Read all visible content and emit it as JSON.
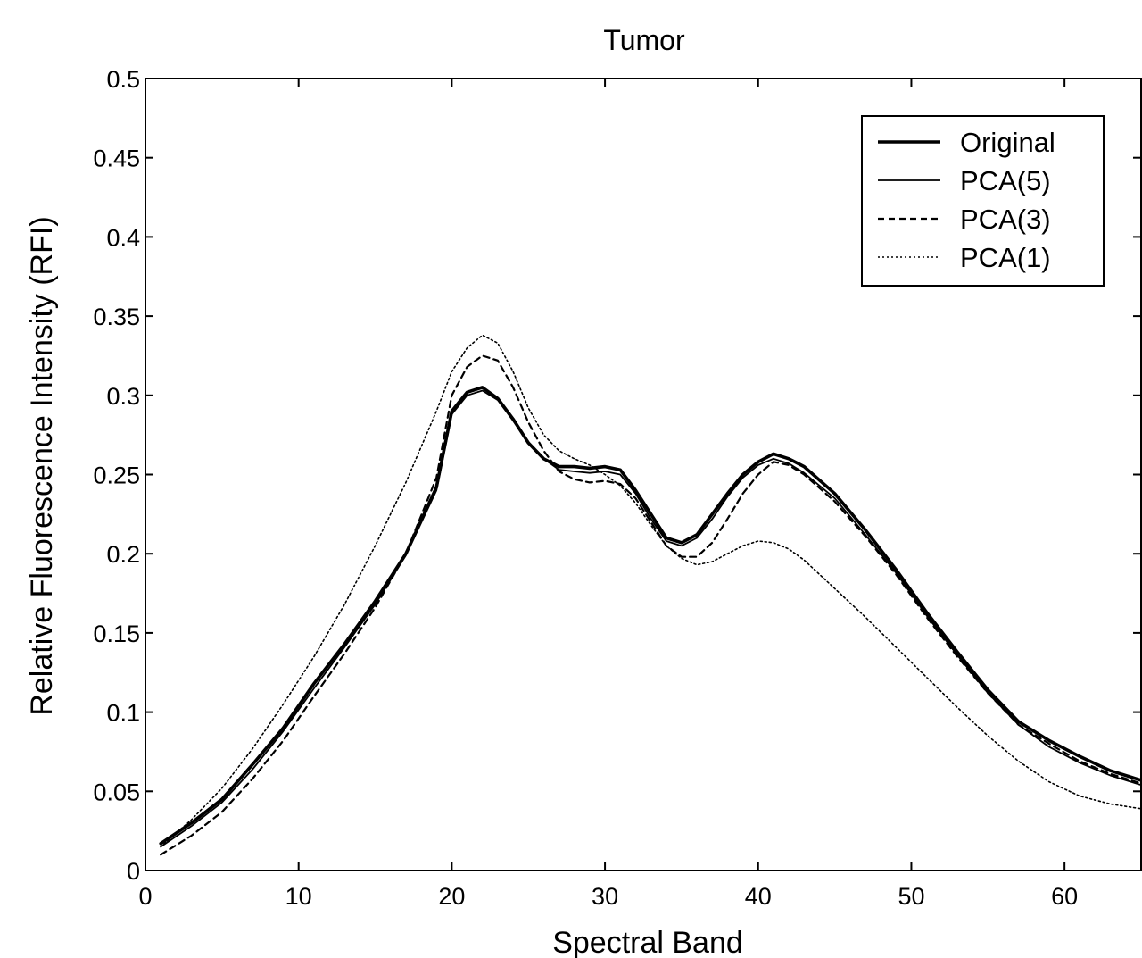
{
  "chart_data": {
    "type": "line",
    "title": "Tumor",
    "xlabel": "Spectral Band",
    "ylabel": "Relative Fluorescence Intensity (RFI)",
    "xlim": [
      0,
      65
    ],
    "ylim": [
      0,
      0.5
    ],
    "xticks": [
      0,
      10,
      20,
      30,
      40,
      50,
      60
    ],
    "xtick_labels": [
      "0",
      "10",
      "20",
      "30",
      "40",
      "50",
      "60"
    ],
    "yticks": [
      0,
      0.05,
      0.1,
      0.15,
      0.2,
      0.25,
      0.3,
      0.35,
      0.4,
      0.45,
      0.5
    ],
    "ytick_labels": [
      "0",
      "0.05",
      "0.1",
      "0.15",
      "0.2",
      "0.25",
      "0.3",
      "0.35",
      "0.4",
      "0.45",
      "0.5"
    ],
    "grid": false,
    "legend_position": "top-right",
    "series": [
      {
        "name": "Original",
        "style": "thick-solid",
        "x": [
          1,
          3,
          5,
          7,
          9,
          11,
          13,
          15,
          17,
          19,
          20,
          21,
          22,
          23,
          24,
          25,
          26,
          27,
          28,
          29,
          30,
          31,
          32,
          33,
          34,
          35,
          36,
          37,
          38,
          39,
          40,
          41,
          42,
          43,
          45,
          47,
          49,
          51,
          53,
          55,
          57,
          59,
          61,
          63,
          65
        ],
        "y": [
          0.017,
          0.03,
          0.045,
          0.067,
          0.09,
          0.118,
          0.143,
          0.17,
          0.2,
          0.242,
          0.29,
          0.302,
          0.305,
          0.298,
          0.285,
          0.27,
          0.26,
          0.255,
          0.255,
          0.254,
          0.255,
          0.253,
          0.24,
          0.225,
          0.21,
          0.207,
          0.212,
          0.225,
          0.238,
          0.25,
          0.258,
          0.263,
          0.26,
          0.255,
          0.238,
          0.215,
          0.19,
          0.163,
          0.138,
          0.114,
          0.094,
          0.082,
          0.072,
          0.063,
          0.057
        ]
      },
      {
        "name": "PCA(5)",
        "style": "solid",
        "x": [
          1,
          3,
          5,
          7,
          9,
          11,
          13,
          15,
          17,
          19,
          20,
          21,
          22,
          23,
          24,
          25,
          26,
          27,
          28,
          29,
          30,
          31,
          32,
          33,
          34,
          35,
          36,
          37,
          38,
          39,
          40,
          41,
          42,
          43,
          45,
          47,
          49,
          51,
          53,
          55,
          57,
          59,
          61,
          63,
          65
        ],
        "y": [
          0.015,
          0.028,
          0.043,
          0.064,
          0.088,
          0.115,
          0.141,
          0.168,
          0.199,
          0.24,
          0.288,
          0.3,
          0.303,
          0.297,
          0.284,
          0.27,
          0.26,
          0.253,
          0.252,
          0.251,
          0.252,
          0.25,
          0.238,
          0.222,
          0.208,
          0.205,
          0.21,
          0.222,
          0.236,
          0.248,
          0.256,
          0.26,
          0.257,
          0.251,
          0.235,
          0.212,
          0.188,
          0.161,
          0.136,
          0.112,
          0.092,
          0.078,
          0.068,
          0.06,
          0.054
        ]
      },
      {
        "name": "PCA(3)",
        "style": "dashed",
        "x": [
          1,
          3,
          5,
          7,
          9,
          11,
          13,
          15,
          17,
          19,
          20,
          21,
          22,
          23,
          24,
          25,
          26,
          27,
          28,
          29,
          30,
          31,
          32,
          33,
          34,
          35,
          36,
          37,
          38,
          39,
          40,
          41,
          42,
          43,
          45,
          47,
          49,
          51,
          53,
          55,
          57,
          59,
          61,
          63,
          65
        ],
        "y": [
          0.01,
          0.022,
          0.037,
          0.058,
          0.082,
          0.11,
          0.137,
          0.166,
          0.2,
          0.248,
          0.3,
          0.318,
          0.325,
          0.322,
          0.305,
          0.283,
          0.265,
          0.252,
          0.247,
          0.245,
          0.246,
          0.244,
          0.235,
          0.22,
          0.205,
          0.198,
          0.198,
          0.207,
          0.222,
          0.238,
          0.25,
          0.258,
          0.256,
          0.25,
          0.233,
          0.211,
          0.187,
          0.16,
          0.135,
          0.112,
          0.092,
          0.08,
          0.069,
          0.061,
          0.055
        ]
      },
      {
        "name": "PCA(1)",
        "style": "dotted",
        "x": [
          1,
          3,
          5,
          7,
          9,
          11,
          13,
          15,
          17,
          19,
          20,
          21,
          22,
          23,
          24,
          25,
          26,
          27,
          28,
          29,
          30,
          31,
          32,
          33,
          34,
          35,
          36,
          37,
          38,
          39,
          40,
          41,
          42,
          43,
          45,
          47,
          49,
          51,
          53,
          55,
          57,
          59,
          61,
          63,
          65
        ],
        "y": [
          0.015,
          0.032,
          0.052,
          0.077,
          0.105,
          0.135,
          0.168,
          0.205,
          0.245,
          0.29,
          0.315,
          0.33,
          0.338,
          0.333,
          0.315,
          0.292,
          0.275,
          0.265,
          0.26,
          0.256,
          0.25,
          0.243,
          0.232,
          0.218,
          0.205,
          0.197,
          0.193,
          0.195,
          0.2,
          0.205,
          0.208,
          0.207,
          0.203,
          0.196,
          0.178,
          0.16,
          0.141,
          0.122,
          0.103,
          0.085,
          0.069,
          0.056,
          0.047,
          0.042,
          0.039
        ]
      }
    ]
  },
  "colors": {
    "axis": "#000000",
    "series": "#000000",
    "background": "#ffffff"
  }
}
